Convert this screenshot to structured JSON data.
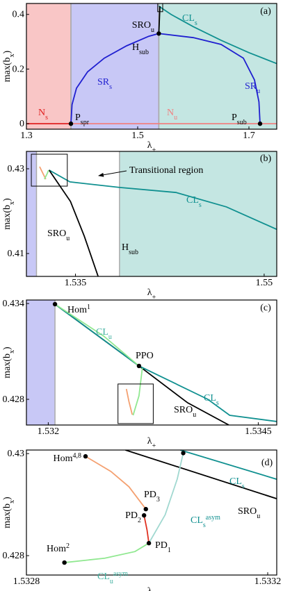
{
  "chart_data": [
    {
      "type": "line",
      "tag": "(a)",
      "xlabel": [
        {
          "t": "λ"
        },
        {
          "t": "+",
          "pos": "sub"
        }
      ],
      "ylabel": [
        {
          "t": "max(b"
        },
        {
          "t": "x",
          "pos": "sub"
        },
        {
          "t": ")"
        }
      ],
      "xlim": [
        1.3,
        1.75
      ],
      "ylim": [
        -0.02,
        0.44
      ],
      "xticks": [
        1.3,
        1.5,
        1.7
      ],
      "yticks": [
        0,
        0.2,
        0.4
      ],
      "regions": [
        {
          "from": 1.3,
          "to": 1.38,
          "color": "#f9c6c6"
        },
        {
          "from": 1.38,
          "to": 1.538,
          "color": "#c8c8f6"
        },
        {
          "from": 1.538,
          "to": 1.75,
          "color": "#c4e6e2"
        }
      ],
      "boxes": [
        {
          "x": [
            1.536,
            1.545
          ],
          "y": [
            0.41,
            0.44
          ]
        }
      ],
      "series": [
        {
          "label": [
            {
              "t": "N"
            },
            {
              "t": "s",
              "pos": "sub"
            }
          ],
          "color": "#e02020",
          "x": [
            1.3,
            1.38
          ],
          "values": [
            0,
            0
          ]
        },
        {
          "label": [
            {
              "t": "N"
            },
            {
              "t": "u",
              "pos": "sub"
            }
          ],
          "color": "#f08080",
          "x": [
            1.38,
            1.75
          ],
          "values": [
            0,
            0
          ]
        },
        {
          "label": [
            {
              "t": "SR"
            },
            {
              "t": "s",
              "pos": "sub"
            }
          ],
          "color": "#1f1fd0",
          "x": [
            1.38,
            1.382,
            1.39,
            1.41,
            1.44,
            1.48,
            1.52,
            1.538
          ],
          "values": [
            0,
            0.07,
            0.13,
            0.19,
            0.24,
            0.285,
            0.32,
            0.33
          ]
        },
        {
          "label": [
            {
              "t": "SR"
            },
            {
              "t": "u",
              "pos": "sub"
            }
          ],
          "color": "#1f1fd0",
          "x": [
            1.538,
            1.6,
            1.65,
            1.69,
            1.71,
            1.718,
            1.72
          ],
          "values": [
            0.33,
            0.315,
            0.29,
            0.24,
            0.16,
            0.08,
            0
          ]
        },
        {
          "label": [
            {
              "t": "CL"
            },
            {
              "t": "s",
              "pos": "sub"
            }
          ],
          "color": "#109090",
          "x": [
            1.538,
            1.56,
            1.6,
            1.65,
            1.7,
            1.75
          ],
          "values": [
            0.43,
            0.4,
            0.355,
            0.305,
            0.26,
            0.22
          ]
        },
        {
          "label": [
            {
              "t": "SRO"
            },
            {
              "t": "u",
              "pos": "sub"
            }
          ],
          "color": "#000000",
          "x": [
            1.538,
            1.539,
            1.54
          ],
          "values": [
            0.33,
            0.38,
            0.43
          ]
        }
      ],
      "points": [
        {
          "x": 1.38,
          "y": 0,
          "label": [
            {
              "t": "P"
            },
            {
              "t": "spr",
              "pos": "sub"
            }
          ]
        },
        {
          "x": 1.538,
          "y": 0.33,
          "label": [
            {
              "t": "H"
            },
            {
              "t": "sub",
              "pos": "sub"
            }
          ]
        },
        {
          "x": 1.72,
          "y": 0,
          "label": [
            {
              "t": "P"
            },
            {
              "t": "sub",
              "pos": "sub"
            }
          ]
        }
      ],
      "annotations": []
    },
    {
      "type": "line",
      "tag": "(b)",
      "xlabel": [
        {
          "t": "λ"
        },
        {
          "t": "+",
          "pos": "sub"
        }
      ],
      "ylabel": [
        {
          "t": "max(b"
        },
        {
          "t": "x",
          "pos": "sub"
        },
        {
          "t": ")"
        }
      ],
      "xlim": [
        1.5311,
        1.551
      ],
      "ylim": [
        0.4046,
        0.4341
      ],
      "xticks": [
        1.535,
        1.55
      ],
      "yticks": [
        0.41,
        0.43
      ],
      "regions": [
        {
          "from": 1.5311,
          "to": 1.5319,
          "color": "#c8c8f6"
        },
        {
          "from": 1.5385,
          "to": 1.551,
          "color": "#c4e6e2"
        }
      ],
      "boxes": [
        {
          "x": [
            1.53149,
            1.53435
          ],
          "y": [
            0.4259,
            0.43344
          ]
        }
      ],
      "series": [
        {
          "label": [
            {
              "t": "CL"
            },
            {
              "t": "s",
              "pos": "sub"
            }
          ],
          "color": "#109090",
          "x": [
            1.5329,
            1.53456,
            1.5385,
            1.543,
            1.547,
            1.551
          ],
          "values": [
            0.4297,
            0.4269,
            0.4256,
            0.4244,
            0.421,
            0.4157
          ]
        },
        {
          "label": [
            {
              "t": "SRO"
            },
            {
              "t": "u",
              "pos": "sub"
            }
          ],
          "color": "#000000",
          "x": [
            1.5329,
            1.5346,
            1.5357,
            1.5368
          ],
          "values": [
            0.4297,
            0.4223,
            0.4141,
            0.4046
          ]
        },
        {
          "color": "#f4a070",
          "x": [
            1.53215,
            1.53242,
            1.53264
          ],
          "values": [
            0.43049,
            0.42885,
            0.42754
          ]
        },
        {
          "color": "#90e890",
          "x": [
            1.53253,
            1.53275,
            1.53286
          ],
          "values": [
            0.42754,
            0.42885,
            0.42967
          ]
        }
      ],
      "points": [],
      "annotations": [
        [
          {
            "t": "H"
          },
          {
            "t": "sub",
            "pos": "sub"
          }
        ],
        [
          {
            "t": "Transitional region"
          }
        ]
      ]
    },
    {
      "type": "line",
      "tag": "(c)",
      "xlabel": [
        {
          "t": "λ"
        },
        {
          "t": "+",
          "pos": "sub"
        }
      ],
      "ylabel": [
        {
          "t": "max(b"
        },
        {
          "t": "x",
          "pos": "sub"
        },
        {
          "t": ")"
        }
      ],
      "xlim": [
        1.53174,
        1.53472
      ],
      "ylim": [
        0.42639,
        0.43422
      ],
      "xticks": [
        1.532,
        1.5345
      ],
      "yticks": [
        0.428,
        0.434
      ],
      "regions": [
        {
          "from": 1.53174,
          "to": 1.53208,
          "color": "#c8c8f6"
        }
      ],
      "boxes": [
        {
          "x": [
            1.53283,
            1.53325
          ],
          "y": [
            0.42648,
            0.42896
          ]
        }
      ],
      "series": [
        {
          "label": [
            {
              "t": "SRO"
            },
            {
              "t": "u",
              "pos": "sub"
            }
          ],
          "color": "#000000",
          "x": [
            1.53208,
            1.53308,
            1.53366,
            1.53415
          ],
          "values": [
            0.43396,
            0.43009,
            0.42778,
            0.42639
          ]
        },
        {
          "label": [
            {
              "t": "CL"
            },
            {
              "t": "s",
              "pos": "sub"
            }
          ],
          "color": "#109090",
          "x": [
            1.53208,
            1.53308,
            1.5339,
            1.53416,
            1.53472
          ],
          "values": [
            0.43396,
            0.43009,
            0.428,
            0.427,
            0.42661
          ]
        },
        {
          "label": [
            {
              "t": "CL"
            },
            {
              "t": "u",
              "pos": "sub"
            }
          ],
          "color": "#90e890",
          "x": [
            1.53208,
            1.53266,
            1.53308
          ],
          "values": [
            0.43396,
            0.43196,
            0.43009
          ]
        },
        {
          "color": "#f4a070",
          "x": [
            1.53293,
            1.53296,
            1.533
          ],
          "values": [
            0.42865,
            0.42787,
            0.42704
          ]
        },
        {
          "color": "#90e890",
          "x": [
            1.53301,
            1.53308,
            1.53312
          ],
          "values": [
            0.427,
            0.42822,
            0.42996
          ]
        }
      ],
      "points": [
        {
          "x": 1.53208,
          "y": 0.43396,
          "label": [
            {
              "t": "Hom"
            },
            {
              "t": "1",
              "pos": "sup"
            }
          ]
        },
        {
          "x": 1.53308,
          "y": 0.43009,
          "label": [
            {
              "t": "PPO"
            }
          ]
        }
      ],
      "annotations": []
    },
    {
      "type": "line",
      "tag": "(d)",
      "xlabel": [
        {
          "t": "λ"
        },
        {
          "t": "+",
          "pos": "sub"
        }
      ],
      "ylabel": [
        {
          "t": "max(b"
        },
        {
          "t": "x",
          "pos": "sub"
        },
        {
          "t": ")"
        }
      ],
      "xlim": [
        1.5328,
        1.533215
      ],
      "ylim": [
        0.42762,
        0.43007
      ],
      "xticks": [
        1.5328,
        1.5332
      ],
      "yticks": [
        0.428,
        0.43
      ],
      "regions": [],
      "boxes": [],
      "series": [
        {
          "label": [
            {
              "t": "SRO"
            },
            {
              "t": "u",
              "pos": "sub"
            }
          ],
          "color": "#000000",
          "x": [
            1.532964,
            1.533215
          ],
          "values": [
            0.43007,
            0.429116
          ]
        },
        {
          "label": [
            {
              "t": "CL"
            },
            {
              "t": "s",
              "pos": "sub"
            }
          ],
          "color": "#109090",
          "x": [
            1.533055,
            1.533215
          ],
          "values": [
            0.43007,
            0.429497
          ]
        },
        {
          "label": [
            {
              "t": "CL"
            },
            {
              "t": "s",
              "pos": "sub"
            },
            {
              "t": "asym",
              "pos": "sup"
            }
          ],
          "color": "#a0d8d0",
          "x": [
            1.533003,
            1.53303,
            1.53305,
            1.53306
          ],
          "values": [
            0.428245,
            0.4288,
            0.4295,
            0.43001
          ]
        },
        {
          "label": [
            {
              "t": "CL"
            },
            {
              "t": "u",
              "pos": "sub"
            },
            {
              "t": "asym",
              "pos": "sup"
            }
          ],
          "color": "#90e890",
          "x": [
            1.532863,
            1.53293,
            1.53298,
            1.533003
          ],
          "values": [
            0.427864,
            0.42795,
            0.42808,
            0.428245
          ]
        },
        {
          "color": "#f4a070",
          "x": [
            1.532898,
            1.53294,
            1.53297,
            1.532998
          ],
          "values": [
            0.429946,
            0.42965,
            0.42935,
            0.428912
          ]
        },
        {
          "color": "#e03020",
          "x": [
            1.532995,
            1.533,
            1.533003
          ],
          "values": [
            0.428789,
            0.4285,
            0.428245
          ]
        }
      ],
      "points": [
        {
          "x": 1.532898,
          "y": 0.429946,
          "label": [
            {
              "t": "Hom"
            },
            {
              "t": "4,8",
              "pos": "sup"
            }
          ]
        },
        {
          "x": 1.532998,
          "y": 0.428912,
          "label": [
            {
              "t": "PD"
            },
            {
              "t": "3",
              "pos": "sub"
            }
          ]
        },
        {
          "x": 1.532995,
          "y": 0.428789,
          "label": [
            {
              "t": "PD"
            },
            {
              "t": "2",
              "pos": "sub"
            }
          ]
        },
        {
          "x": 1.533003,
          "y": 0.428245,
          "label": [
            {
              "t": "PD"
            },
            {
              "t": "1",
              "pos": "sub"
            }
          ]
        },
        {
          "x": 1.532863,
          "y": 0.427864,
          "label": [
            {
              "t": "Hom"
            },
            {
              "t": "2",
              "pos": "sup"
            }
          ]
        },
        {
          "x": 1.53306,
          "y": 0.43001
        }
      ],
      "annotations": []
    }
  ]
}
